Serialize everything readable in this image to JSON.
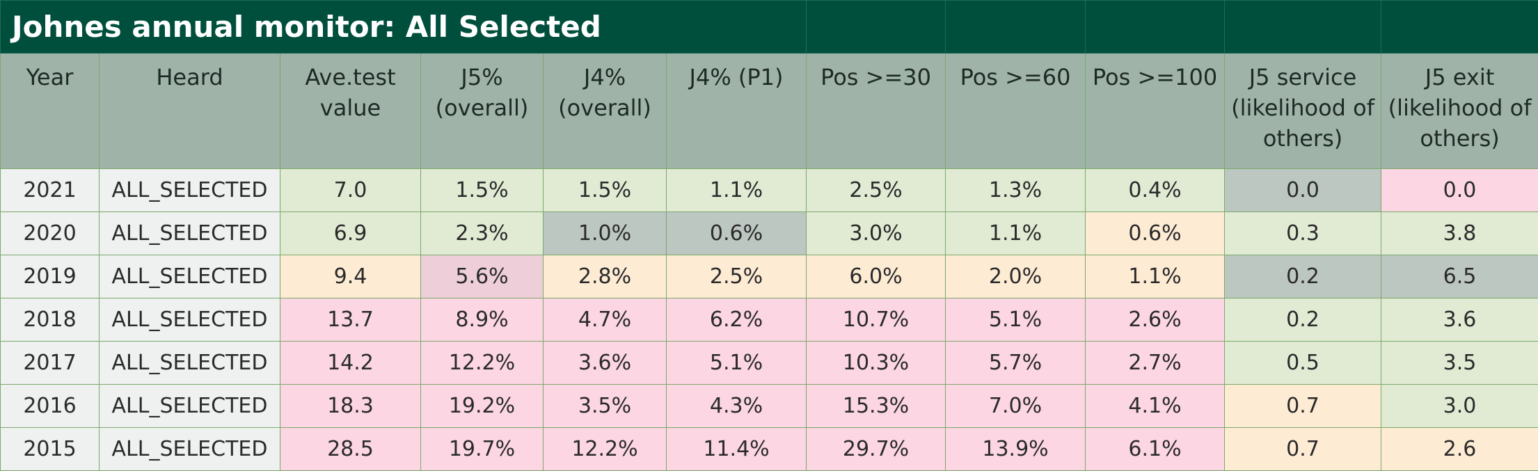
{
  "title": "Johnes annual monitor: All Selected",
  "columns": [
    "Year",
    "Heard",
    "Ave.test value",
    "J5% (overall)",
    "J4% (overall)",
    "J4% (P1)",
    "Pos >=30",
    "Pos >=60",
    "Pos >=100",
    "J5 service (likelihood of others)",
    "J5 exit (likelihood of others)"
  ],
  "rows": [
    {
      "year": "2021",
      "herd": "ALL_SELECTED",
      "values": [
        "7.0",
        "1.5%",
        "1.5%",
        "1.1%",
        "2.5%",
        "1.3%",
        "0.4%",
        "0.0",
        "0.0"
      ]
    },
    {
      "year": "2020",
      "herd": "ALL_SELECTED",
      "values": [
        "6.9",
        "2.3%",
        "1.0%",
        "0.6%",
        "3.0%",
        "1.1%",
        "0.6%",
        "0.3",
        "3.8"
      ]
    },
    {
      "year": "2019",
      "herd": "ALL_SELECTED",
      "values": [
        "9.4",
        "5.6%",
        "2.8%",
        "2.5%",
        "6.0%",
        "2.0%",
        "1.1%",
        "0.2",
        "6.5"
      ]
    },
    {
      "year": "2018",
      "herd": "ALL_SELECTED",
      "values": [
        "13.7",
        "8.9%",
        "4.7%",
        "6.2%",
        "10.7%",
        "5.1%",
        "2.6%",
        "0.2",
        "3.6"
      ]
    },
    {
      "year": "2017",
      "herd": "ALL_SELECTED",
      "values": [
        "14.2",
        "12.2%",
        "3.6%",
        "5.1%",
        "10.3%",
        "5.7%",
        "2.7%",
        "0.5",
        "3.5"
      ]
    },
    {
      "year": "2016",
      "herd": "ALL_SELECTED",
      "values": [
        "18.3",
        "19.2%",
        "3.5%",
        "4.3%",
        "15.3%",
        "7.0%",
        "4.1%",
        "0.7",
        "3.0"
      ]
    },
    {
      "year": "2015",
      "herd": "ALL_SELECTED",
      "values": [
        "28.5",
        "19.7%",
        "12.2%",
        "11.4%",
        "29.7%",
        "13.9%",
        "6.1%",
        "0.7",
        "2.6"
      ]
    }
  ],
  "cell_colors": [
    [
      "#e1ebd4",
      "#e1ebd4",
      "#e1ebd4",
      "#e1ebd4",
      "#e1ebd4",
      "#e1ebd4",
      "#e1ebd4",
      "#bcc7c2",
      "#fcd6e3"
    ],
    [
      "#e1ebd4",
      "#e1ebd4",
      "#bcc7c2",
      "#bcc7c2",
      "#e1ebd4",
      "#e1ebd4",
      "#fdebd4",
      "#e1ebd4",
      "#e1ebd4"
    ],
    [
      "#fdebd4",
      "#eecfd9",
      "#fdebd4",
      "#fdebd4",
      "#fdebd4",
      "#fdebd4",
      "#fdebd4",
      "#bcc7c2",
      "#bcc7c2"
    ],
    [
      "#fcd6e3",
      "#fcd6e3",
      "#fcd6e3",
      "#fcd6e3",
      "#fcd6e3",
      "#fcd6e3",
      "#fcd6e3",
      "#e1ebd4",
      "#e1ebd4"
    ],
    [
      "#fcd6e3",
      "#fcd6e3",
      "#fcd6e3",
      "#fcd6e3",
      "#fcd6e3",
      "#fcd6e3",
      "#fcd6e3",
      "#e1ebd4",
      "#e1ebd4"
    ],
    [
      "#fcd6e3",
      "#fcd6e3",
      "#fcd6e3",
      "#fcd6e3",
      "#fcd6e3",
      "#fcd6e3",
      "#fcd6e3",
      "#fdebd4",
      "#e1ebd4"
    ],
    [
      "#fcd6e3",
      "#fcd6e3",
      "#fcd6e3",
      "#fcd6e3",
      "#fcd6e3",
      "#fcd6e3",
      "#fcd6e3",
      "#fdebd4",
      "#fdebd4"
    ]
  ],
  "colors": {
    "title_bg": "#004f3d",
    "header_bg": "#9fb3a9",
    "label_bg": "#eef1f0",
    "border": "#7aa86a"
  }
}
